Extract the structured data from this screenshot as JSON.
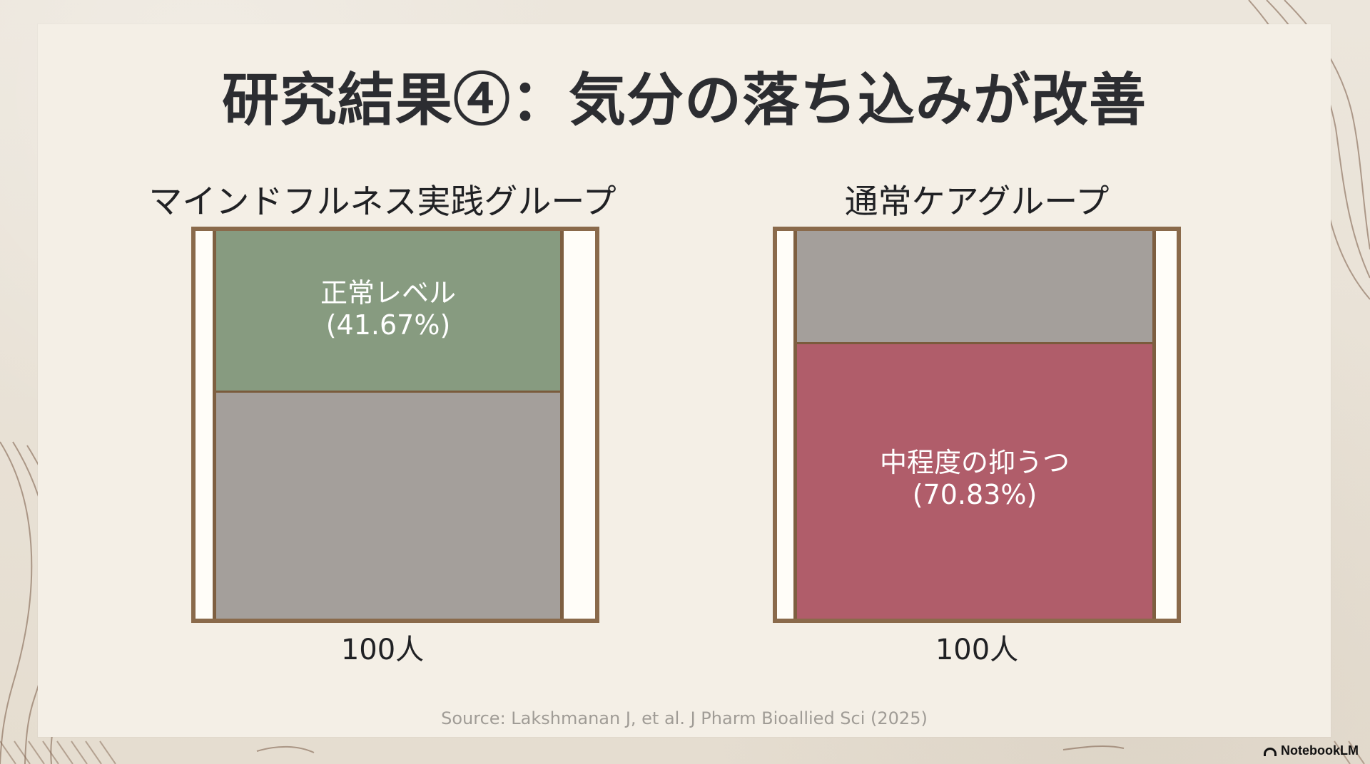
{
  "slide": {
    "title": "研究結果④：気分の落ち込みが改善",
    "source": "Source: Lakshmanan J, et al. J Pharm Bioallied Sci (2025)",
    "watermark": "NotebookLM"
  },
  "colors": {
    "background": "#e8e1d4",
    "slide": "#f4efe6",
    "frame": "#8a6a4b",
    "normal_green": "#879b80",
    "neutral_gray": "#a49f9b",
    "depression_red": "#b05d6a",
    "text": "#202124",
    "source": "#a09c96"
  },
  "chart_data": [
    {
      "type": "bar",
      "title": "マインドフルネス実践グループ",
      "total_label": "100人",
      "segments": [
        {
          "name": "正常レベル",
          "value": 41.67,
          "display": "(41.67%)",
          "color": "#879b80",
          "label": "正常レベル\n(41.67%)"
        },
        {
          "name": "",
          "value": 58.33,
          "display": "",
          "color": "#a49f9b",
          "label": ""
        }
      ]
    },
    {
      "type": "bar",
      "title": "通常ケアグループ",
      "total_label": "100人",
      "segments": [
        {
          "name": "",
          "value": 29.17,
          "display": "",
          "color": "#a49f9b",
          "label": ""
        },
        {
          "name": "中程度の抑うつ",
          "value": 70.83,
          "display": "(70.83%)",
          "color": "#b05d6a",
          "label": "中程度の抑うつ\n(70.83%)"
        }
      ]
    }
  ]
}
